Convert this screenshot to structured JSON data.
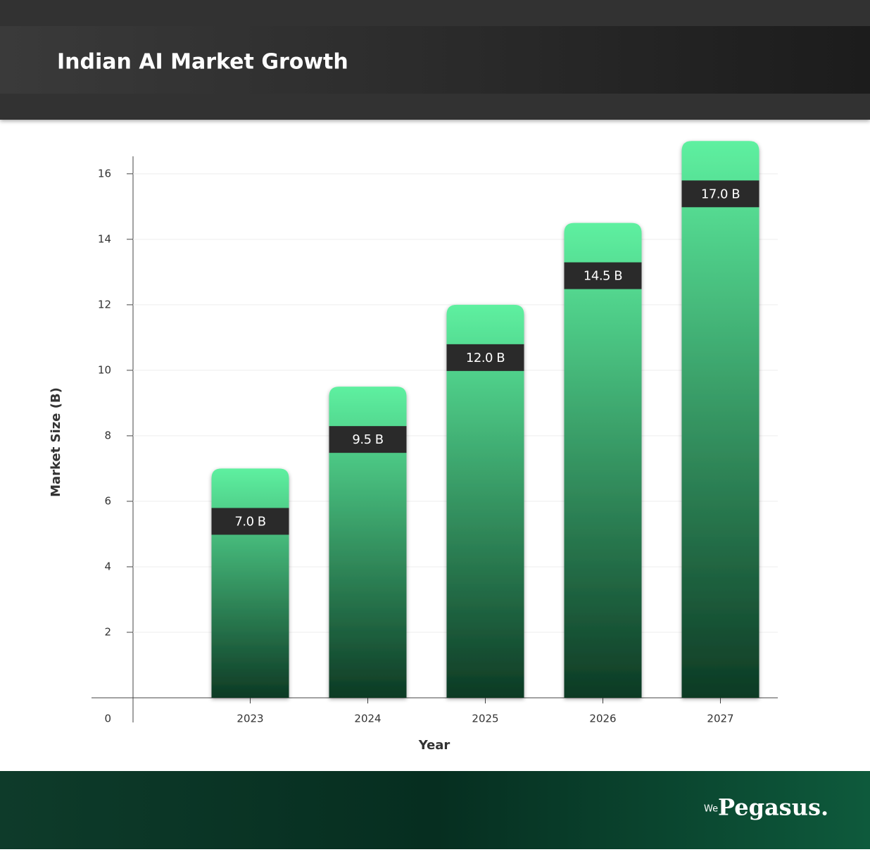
{
  "header": {
    "title": "Indian AI Market Growth"
  },
  "chart_data": {
    "type": "bar",
    "x_label": "Year",
    "y_label": "Market Size (B)",
    "categories": [
      "2023",
      "2024",
      "2025",
      "2026",
      "2027"
    ],
    "values": [
      7.0,
      9.5,
      12.0,
      14.5,
      17.0
    ],
    "value_labels": [
      "7.0 B",
      "9.5 B",
      "12.0 B",
      "14.5 B",
      "17.0 B"
    ],
    "color": "#5ef0a0",
    "ylim": [
      0,
      17.2
    ],
    "yticks": [
      0,
      2,
      4,
      6,
      8,
      10,
      12,
      14,
      16
    ],
    "grid": true
  },
  "footer": {
    "brand_prefix": "We",
    "brand_name": "Pegasus."
  }
}
